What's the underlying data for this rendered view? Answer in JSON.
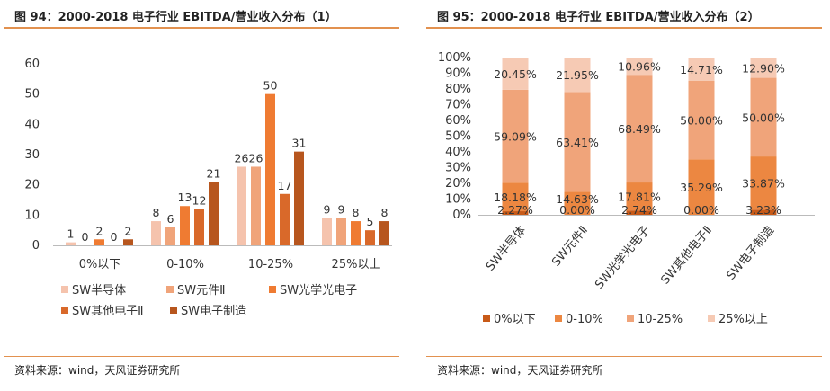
{
  "colors": {
    "accent_rule": "#e2914f",
    "series": [
      "#f5c3ad",
      "#f0a47a",
      "#ef7b32",
      "#d9692a",
      "#b7561e"
    ],
    "stack": [
      "#c85a18",
      "#ec8741",
      "#f0a47a",
      "#f6cab4"
    ]
  },
  "left_panel": {
    "title": "图 94：2000-2018 电子行业 EBITDA/营业收入分布（1）",
    "source": "资料来源：wind，天风证券研究所"
  },
  "right_panel": {
    "title": "图 95：2000-2018 电子行业 EBITDA/营业收入分布（2）",
    "source": "资料来源：wind，天风证券研究所"
  },
  "chart_data": [
    {
      "type": "bar",
      "categories": [
        "0%以下",
        "0-10%",
        "10-25%",
        "25%以上"
      ],
      "series": [
        {
          "name": "SW半导体",
          "values": [
            1,
            8,
            26,
            9
          ]
        },
        {
          "name": "SW元件Ⅱ",
          "values": [
            0,
            6,
            26,
            9
          ]
        },
        {
          "name": "SW光学光电子",
          "values": [
            2,
            13,
            50,
            8
          ]
        },
        {
          "name": "SW其他电子Ⅱ",
          "values": [
            0,
            12,
            17,
            5
          ]
        },
        {
          "name": "SW电子制造",
          "values": [
            2,
            21,
            31,
            8
          ]
        }
      ],
      "yticks": [
        "0",
        "10",
        "20",
        "30",
        "40",
        "50",
        "60"
      ],
      "ylim": [
        0,
        60
      ],
      "grid": false,
      "legend": "bottom"
    },
    {
      "type": "bar",
      "stacked": true,
      "percent": true,
      "categories": [
        "SW半导体",
        "SW元件Ⅱ",
        "SW光学光电子",
        "SW其他电子Ⅱ",
        "SW电子制造"
      ],
      "series": [
        {
          "name": "0%以下",
          "values": [
            2.27,
            0.0,
            2.74,
            0.0,
            3.23
          ],
          "labels": [
            "2.27%",
            "0.00%",
            "2.74%",
            "0.00%",
            "3.23%"
          ]
        },
        {
          "name": "0-10%",
          "values": [
            18.18,
            14.63,
            17.81,
            35.29,
            33.87
          ],
          "labels": [
            "18.18%",
            "14.63%",
            "17.81%",
            "35.29%",
            "33.87%"
          ]
        },
        {
          "name": "10-25%",
          "values": [
            59.09,
            63.41,
            68.49,
            50.0,
            50.0
          ],
          "labels": [
            "59.09%",
            "63.41%",
            "68.49%",
            "50.00%",
            "50.00%"
          ]
        },
        {
          "name": "25%以上",
          "values": [
            20.45,
            21.95,
            10.96,
            14.71,
            12.9
          ],
          "labels": [
            "20.45%",
            "21.95%",
            "10.96%",
            "14.71%",
            "12.90%"
          ]
        }
      ],
      "yticks": [
        "0%",
        "10%",
        "20%",
        "30%",
        "40%",
        "50%",
        "60%",
        "70%",
        "80%",
        "90%",
        "100%"
      ],
      "ylim": [
        0,
        100
      ],
      "grid": false,
      "legend": "bottom"
    }
  ]
}
